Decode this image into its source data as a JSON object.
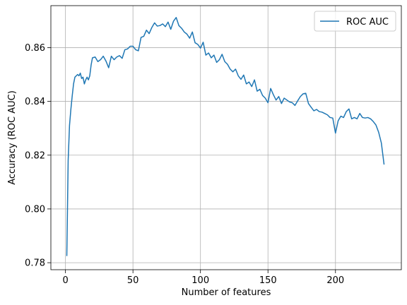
{
  "chart_data": {
    "type": "line",
    "xlabel": "Number of features",
    "ylabel": "Accuracy (ROC AUC)",
    "xlim": [
      -10.8,
      248.8
    ],
    "ylim": [
      0.7774,
      0.8756
    ],
    "xticks": [
      0,
      50,
      100,
      150,
      200
    ],
    "yticks": [
      0.78,
      0.8,
      0.82,
      0.84,
      0.86
    ],
    "ytick_labels": [
      "0.78",
      "0.80",
      "0.82",
      "0.84",
      "0.86"
    ],
    "grid": true,
    "legend_position": "top-right",
    "series": [
      {
        "name": "ROC AUC",
        "color": "#1f77b4",
        "x": [
          1,
          2,
          3,
          4,
          5,
          6,
          7,
          8,
          9,
          10,
          11,
          12,
          13,
          14,
          15,
          16,
          17,
          18,
          19,
          20,
          22,
          24,
          26,
          28,
          30,
          32,
          34,
          36,
          38,
          40,
          42,
          44,
          46,
          48,
          50,
          52,
          54,
          56,
          58,
          60,
          62,
          64,
          66,
          68,
          70,
          72,
          74,
          76,
          78,
          80,
          82,
          84,
          86,
          88,
          90,
          92,
          94,
          96,
          98,
          100,
          102,
          104,
          106,
          108,
          110,
          112,
          114,
          116,
          118,
          120,
          122,
          124,
          126,
          128,
          130,
          132,
          134,
          136,
          138,
          140,
          142,
          144,
          146,
          148,
          150,
          152,
          154,
          156,
          158,
          160,
          162,
          164,
          166,
          168,
          170,
          172,
          174,
          176,
          178,
          180,
          182,
          184,
          186,
          188,
          190,
          192,
          194,
          196,
          198,
          200,
          202,
          204,
          206,
          208,
          210,
          212,
          214,
          216,
          218,
          220,
          222,
          224,
          226,
          228,
          230,
          232,
          234,
          236
        ],
        "values": [
          0.7825,
          0.818,
          0.831,
          0.837,
          0.842,
          0.8465,
          0.849,
          0.8495,
          0.85,
          0.8495,
          0.8505,
          0.8485,
          0.849,
          0.8465,
          0.848,
          0.849,
          0.848,
          0.8495,
          0.8535,
          0.8562,
          0.8565,
          0.8548,
          0.8555,
          0.8568,
          0.855,
          0.8525,
          0.8568,
          0.8555,
          0.8565,
          0.857,
          0.856,
          0.8592,
          0.8595,
          0.8605,
          0.8605,
          0.8592,
          0.8588,
          0.8638,
          0.8642,
          0.8665,
          0.8652,
          0.8675,
          0.8692,
          0.868,
          0.8682,
          0.8688,
          0.8678,
          0.8695,
          0.8668,
          0.8698,
          0.8712,
          0.8682,
          0.8672,
          0.8658,
          0.865,
          0.8635,
          0.8658,
          0.8618,
          0.8612,
          0.8598,
          0.862,
          0.8572,
          0.858,
          0.8562,
          0.8572,
          0.8545,
          0.8555,
          0.8575,
          0.8548,
          0.8538,
          0.852,
          0.851,
          0.852,
          0.8495,
          0.8482,
          0.8498,
          0.8465,
          0.8472,
          0.8455,
          0.848,
          0.8438,
          0.8445,
          0.8422,
          0.8412,
          0.8395,
          0.8448,
          0.8425,
          0.8405,
          0.8418,
          0.8392,
          0.8412,
          0.8405,
          0.8398,
          0.8395,
          0.8385,
          0.8402,
          0.8418,
          0.8428,
          0.843,
          0.8392,
          0.8378,
          0.8365,
          0.837,
          0.8362,
          0.836,
          0.8355,
          0.835,
          0.834,
          0.8338,
          0.8282,
          0.8328,
          0.8345,
          0.834,
          0.8362,
          0.8372,
          0.8335,
          0.834,
          0.8335,
          0.8355,
          0.834,
          0.8338,
          0.834,
          0.8335,
          0.8325,
          0.8312,
          0.8285,
          0.8245,
          0.8165
        ]
      }
    ]
  }
}
